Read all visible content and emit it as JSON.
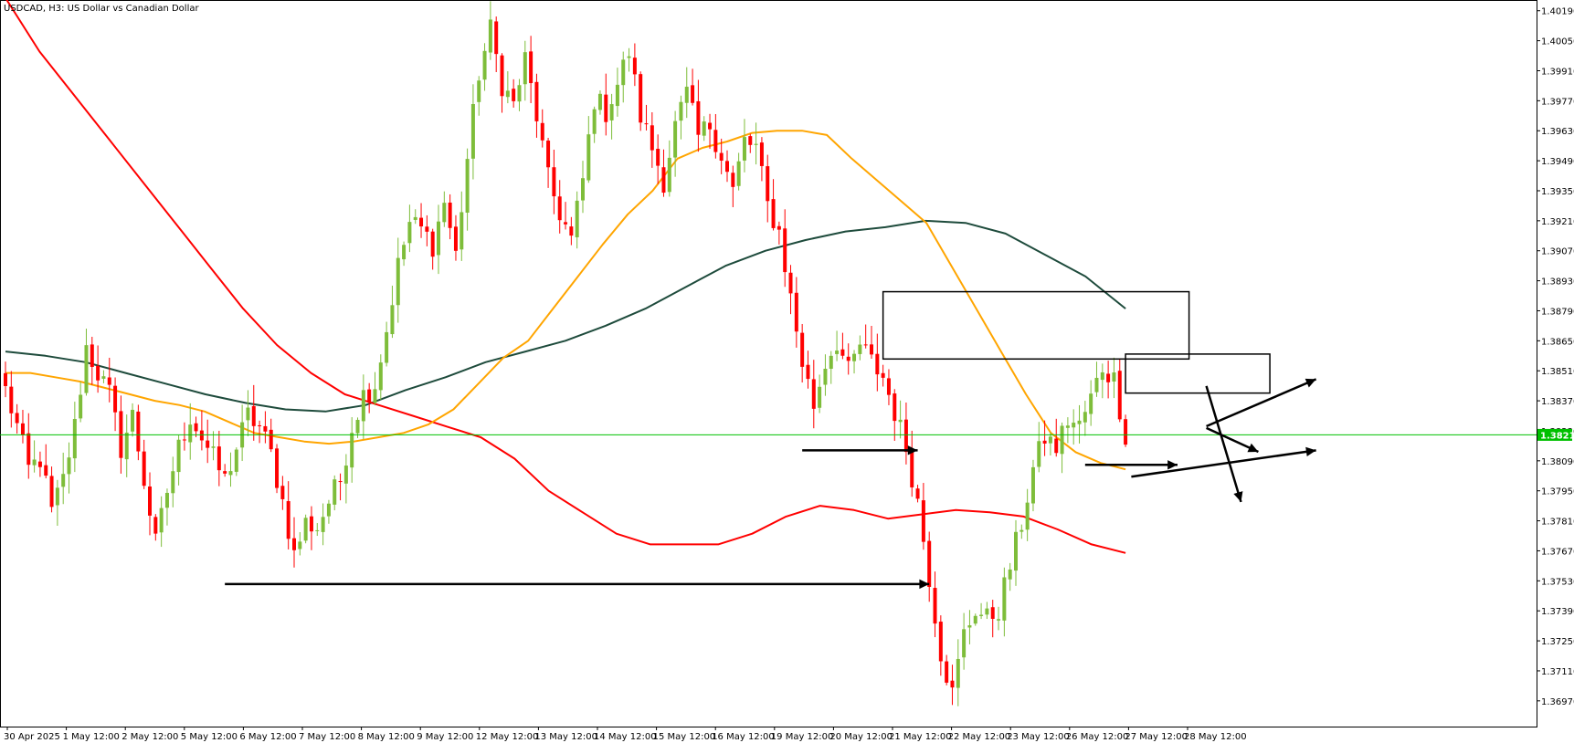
{
  "window": {
    "symbol": "USDCAD",
    "timeframe": "H3",
    "description": "US Dollar vs Canadian Dollar",
    "title_text": "USDCAD, H3:  US Dollar vs Canadian Dollar"
  },
  "colors": {
    "background": "#ffffff",
    "bull_candle": "#7ebd3a",
    "bear_candle": "#ff0000",
    "ma_fast": "#ffa500",
    "ma_slow": "#ff0000",
    "ma_long": "#1e4b3c",
    "current_price_line": "#00c000",
    "price_badge_bg": "#00c000",
    "annotation": "#000000"
  },
  "chart_data": {
    "type": "candlestick",
    "title": "USDCAD, H3:  US Dollar vs Canadian Dollar",
    "grid": false,
    "ylim": [
      1.3685,
      1.4024
    ],
    "y_ticks": [
      "1.40190",
      "1.40050",
      "1.39910",
      "1.39770",
      "1.39630",
      "1.39490",
      "1.39350",
      "1.39210",
      "1.39070",
      "1.38930",
      "1.38790",
      "1.38650",
      "1.38510",
      "1.38370",
      "1.38230",
      "1.38090",
      "1.37950",
      "1.37810",
      "1.37670",
      "1.37530",
      "1.37390",
      "1.37250",
      "1.37110",
      "1.36970"
    ],
    "x_ticks": [
      "30 Apr 2025",
      "1 May 12:00",
      "2 May 12:00",
      "5 May 12:00",
      "6 May 12:00",
      "7 May 12:00",
      "8 May 12:00",
      "9 May 12:00",
      "12 May 12:00",
      "13 May 12:00",
      "14 May 12:00",
      "15 May 12:00",
      "16 May 12:00",
      "19 May 12:00",
      "20 May 12:00",
      "21 May 12:00",
      "22 May 12:00",
      "23 May 12:00",
      "26 May 12:00",
      "27 May 12:00",
      "28 May 12:00"
    ],
    "current_price": "1.38211",
    "anchors": [
      1.3842,
      1.3825,
      1.3805,
      1.381,
      1.3785,
      1.38,
      1.3825,
      1.3862,
      1.385,
      1.384,
      1.3815,
      1.383,
      1.38,
      1.377,
      1.3795,
      1.3815,
      1.383,
      1.382,
      1.381,
      1.38,
      1.3815,
      1.383,
      1.3825,
      1.3812,
      1.379,
      1.3765,
      1.378,
      1.3778,
      1.379,
      1.38,
      1.3825,
      1.384,
      1.3845,
      1.387,
      1.39,
      1.392,
      1.3917,
      1.391,
      1.393,
      1.3905,
      1.395,
      1.399,
      1.401,
      1.3985,
      1.3975,
      1.3996,
      1.397,
      1.394,
      1.3925,
      1.3912,
      1.394,
      1.3978,
      1.3972,
      1.3985,
      1.4,
      1.397,
      1.3955,
      1.394,
      1.3965,
      1.398,
      1.396,
      1.3966,
      1.3952,
      1.3935,
      1.3958,
      1.3955,
      1.3928,
      1.3916,
      1.3885,
      1.3855,
      1.3835,
      1.3855,
      1.3865,
      1.385,
      1.3863,
      1.3855,
      1.3848,
      1.3832,
      1.3815,
      1.379,
      1.3755,
      1.372,
      1.37,
      1.3728,
      1.374,
      1.3735,
      1.374,
      1.376,
      1.378,
      1.3805,
      1.382,
      1.3815,
      1.3828,
      1.3825,
      1.3838,
      1.3853,
      1.3847,
      1.3821
    ],
    "ma_fast": [
      1.385,
      1.385,
      1.3848,
      1.3846,
      1.3843,
      1.384,
      1.3837,
      1.3835,
      1.3832,
      1.3827,
      1.3822,
      1.382,
      1.3818,
      1.3817,
      1.3818,
      1.382,
      1.3822,
      1.3826,
      1.3833,
      1.3845,
      1.3857,
      1.3865,
      1.388,
      1.3895,
      1.391,
      1.3924,
      1.3935,
      1.395,
      1.3955,
      1.3958,
      1.3962,
      1.3963,
      1.3963,
      1.3961,
      1.395,
      1.394,
      1.393,
      1.392,
      1.39,
      1.388,
      1.386,
      1.384,
      1.3822,
      1.3813,
      1.3808,
      1.3805
    ],
    "ma_slow": [
      1.4025,
      1.4,
      1.398,
      1.396,
      1.394,
      1.392,
      1.39,
      1.388,
      1.3863,
      1.385,
      1.384,
      1.3835,
      1.383,
      1.3825,
      1.382,
      1.381,
      1.3795,
      1.3785,
      1.3775,
      1.377,
      1.377,
      1.377,
      1.3775,
      1.3783,
      1.3788,
      1.3786,
      1.3782,
      1.3784,
      1.3786,
      1.3785,
      1.3783,
      1.3777,
      1.377,
      1.3766
    ],
    "ma_long": [
      1.386,
      1.3858,
      1.3855,
      1.385,
      1.3845,
      1.384,
      1.3836,
      1.3833,
      1.3832,
      1.3835,
      1.3842,
      1.3848,
      1.3855,
      1.386,
      1.3865,
      1.3872,
      1.388,
      1.389,
      1.39,
      1.3907,
      1.3912,
      1.3916,
      1.3918,
      1.3921,
      1.392,
      1.3915,
      1.3905,
      1.3895,
      1.388
    ],
    "annotations": {
      "boxes": [
        {
          "t0": 152,
          "t1": 205,
          "p0": 1.38879,
          "p1": 1.38565
        },
        {
          "t0": 194,
          "t1": 219,
          "p0": 1.38588,
          "p1": 1.38406
        }
      ],
      "arrows": [
        {
          "t0": 38,
          "t1": 160,
          "p0": 1.37515,
          "p1": 1.37515
        },
        {
          "t0": 138,
          "t1": 158,
          "p0": 1.38139,
          "p1": 1.38139
        },
        {
          "t0": 187,
          "t1": 203,
          "p0": 1.38071,
          "p1": 1.38071
        },
        {
          "t0": 208,
          "t1": 227,
          "p0": 1.38251,
          "p1": 1.38471
        },
        {
          "t0": 208,
          "t1": 214,
          "p0": 1.38439,
          "p1": 1.37898
        },
        {
          "t0": 195,
          "t1": 227,
          "p0": 1.38016,
          "p1": 1.38139
        },
        {
          "t0": 208,
          "t1": 217,
          "p0": 1.38243,
          "p1": 1.38132
        }
      ]
    }
  }
}
